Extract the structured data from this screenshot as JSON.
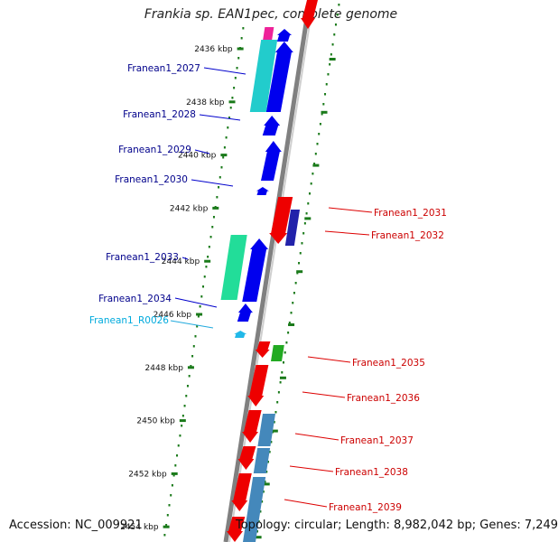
{
  "title": "Frankia sp. EAN1pec, complete genome",
  "footer": {
    "accession": "Accession: NC_009921",
    "info": "Topology: circular; Length: 8,982,042 bp; Genes: 7,249"
  },
  "colors": {
    "forward_gene": "#0000ee",
    "reverse_gene": "#ee0000",
    "forward_label": "#00008b",
    "reverse_label": "#cc0000",
    "rna_label": "#00aadd",
    "tick": "#1a7a1a",
    "backbone": "#808080"
  },
  "ticks": [
    {
      "label": "2436 kbp"
    },
    {
      "label": "2438 kbp"
    },
    {
      "label": "2440 kbp"
    },
    {
      "label": "2442 kbp"
    },
    {
      "label": "2444 kbp"
    },
    {
      "label": "2446 kbp"
    },
    {
      "label": "2448 kbp"
    },
    {
      "label": "2450 kbp"
    },
    {
      "label": "2452 kbp"
    },
    {
      "label": "2454 kbp"
    }
  ],
  "gene_labels": [
    {
      "name": "Franean1_2027",
      "strand": "forward"
    },
    {
      "name": "Franean1_2028",
      "strand": "forward"
    },
    {
      "name": "Franean1_2029",
      "strand": "forward"
    },
    {
      "name": "Franean1_2030",
      "strand": "forward"
    },
    {
      "name": "Franean1_2031",
      "strand": "reverse"
    },
    {
      "name": "Franean1_2032",
      "strand": "reverse"
    },
    {
      "name": "Franean1_2033",
      "strand": "forward"
    },
    {
      "name": "Franean1_2034",
      "strand": "forward"
    },
    {
      "name": "Franean1_R0026",
      "strand": "rna"
    },
    {
      "name": "Franean1_2035",
      "strand": "reverse"
    },
    {
      "name": "Franean1_2036",
      "strand": "reverse"
    },
    {
      "name": "Franean1_2037",
      "strand": "reverse"
    },
    {
      "name": "Franean1_2038",
      "strand": "reverse"
    },
    {
      "name": "Franean1_2039",
      "strand": "reverse"
    }
  ]
}
